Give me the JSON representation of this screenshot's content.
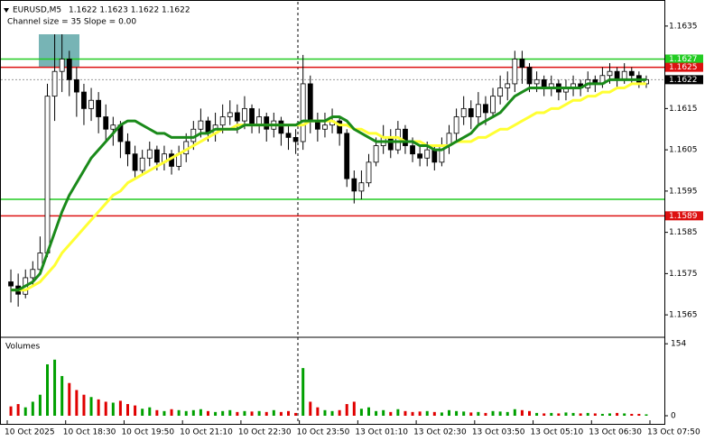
{
  "chart_data": {
    "type": "candlestick",
    "symbol": "EURUSD,M5",
    "quote": "1.1622 1.1623 1.1622 1.1622",
    "indicator": "Channel size = 35 Slope = 0.00",
    "xlim": [
      0,
      88
    ],
    "xticks": [
      {
        "value": 0,
        "label": "10 Oct 2025"
      },
      {
        "value": 8,
        "label": "10 Oct 18:30"
      },
      {
        "value": 16,
        "label": "10 Oct 19:50"
      },
      {
        "value": 24,
        "label": "10 Oct 21:10"
      },
      {
        "value": 32,
        "label": "10 Oct 22:30"
      },
      {
        "value": 40,
        "label": "10 Oct 23:50"
      },
      {
        "value": 48,
        "label": "13 Oct 01:10"
      },
      {
        "value": 56,
        "label": "13 Oct 02:30"
      },
      {
        "value": 64,
        "label": "13 Oct 03:50"
      },
      {
        "value": 72,
        "label": "13 Oct 05:10"
      },
      {
        "value": 80,
        "label": "13 Oct 06:30"
      },
      {
        "value": 88,
        "label": "13 Oct 07:50"
      }
    ],
    "ylim": [
      1.156,
      1.164
    ],
    "yticks": [
      1.1565,
      1.1575,
      1.1585,
      1.1595,
      1.1605,
      1.1615,
      1.1625,
      1.1635
    ],
    "up_color": "#ffffff",
    "down_color": "#000000",
    "open": [
      1.1573,
      1.1572,
      1.157,
      1.1574,
      1.1576,
      1.158,
      1.1618,
      1.1624,
      1.1627,
      1.1622,
      1.1619,
      1.1615,
      1.1617,
      1.1613,
      1.161,
      1.1611,
      1.1607,
      1.1604,
      1.16,
      1.1603,
      1.1605,
      1.1602,
      1.1604,
      1.1601,
      1.1604,
      1.1607,
      1.161,
      1.1612,
      1.1609,
      1.1611,
      1.1613,
      1.1614,
      1.1612,
      1.1615,
      1.1611,
      1.1613,
      1.161,
      1.1612,
      1.1609,
      1.1608,
      1.1607,
      1.1621,
      1.1612,
      1.161,
      1.1611,
      1.1612,
      1.1609,
      1.1598,
      1.1595,
      1.1597,
      1.1602,
      1.1606,
      1.1608,
      1.1605,
      1.161,
      1.1606,
      1.1604,
      1.1603,
      1.1605,
      1.1602,
      1.1606,
      1.1609,
      1.1613,
      1.1615,
      1.1613,
      1.1616,
      1.1614,
      1.1618,
      1.162,
      1.1621,
      1.1627,
      1.1625,
      1.1621,
      1.1622,
      1.162,
      1.1621,
      1.1619,
      1.162,
      1.1621,
      1.162,
      1.1622,
      1.1621,
      1.1623,
      1.1624,
      1.1622,
      1.1624,
      1.1623,
      1.1621
    ],
    "high": [
      1.1576,
      1.1575,
      1.1576,
      1.1578,
      1.1584,
      1.1621,
      1.1633,
      1.1633,
      1.1629,
      1.1625,
      1.1621,
      1.162,
      1.1619,
      1.1616,
      1.1613,
      1.1612,
      1.1609,
      1.1606,
      1.1605,
      1.1607,
      1.1606,
      1.1606,
      1.1605,
      1.1606,
      1.1609,
      1.1612,
      1.1615,
      1.1613,
      1.1614,
      1.1616,
      1.1617,
      1.1616,
      1.1618,
      1.1616,
      1.1615,
      1.1614,
      1.1614,
      1.1613,
      1.1611,
      1.161,
      1.1628,
      1.1623,
      1.1614,
      1.1614,
      1.1615,
      1.1613,
      1.161,
      1.16,
      1.16,
      1.1604,
      1.1608,
      1.1611,
      1.161,
      1.1612,
      1.1611,
      1.1608,
      1.1606,
      1.1607,
      1.1606,
      1.1608,
      1.1611,
      1.1615,
      1.1618,
      1.1617,
      1.1619,
      1.1618,
      1.162,
      1.1623,
      1.1624,
      1.1629,
      1.1629,
      1.1626,
      1.1624,
      1.1623,
      1.1623,
      1.1622,
      1.1622,
      1.1623,
      1.1622,
      1.1624,
      1.1623,
      1.1625,
      1.1626,
      1.1625,
      1.1626,
      1.1625,
      1.1624,
      1.1623
    ],
    "low": [
      1.1568,
      1.1567,
      1.1569,
      1.1572,
      1.1575,
      1.1579,
      1.1612,
      1.1619,
      1.1618,
      1.1613,
      1.1611,
      1.1612,
      1.1609,
      1.1607,
      1.1606,
      1.1603,
      1.1601,
      1.1598,
      1.1599,
      1.1601,
      1.16,
      1.16,
      1.1599,
      1.16,
      1.1602,
      1.1605,
      1.1608,
      1.1607,
      1.1607,
      1.1609,
      1.1611,
      1.1609,
      1.161,
      1.1609,
      1.1609,
      1.1607,
      1.1608,
      1.1606,
      1.1605,
      1.1604,
      1.1605,
      1.1609,
      1.1607,
      1.1608,
      1.1609,
      1.1606,
      1.1596,
      1.1592,
      1.1593,
      1.1596,
      1.1601,
      1.1604,
      1.1603,
      1.1604,
      1.1604,
      1.1602,
      1.1601,
      1.1601,
      1.16,
      1.1601,
      1.1604,
      1.1607,
      1.1611,
      1.161,
      1.1611,
      1.1611,
      1.1613,
      1.1616,
      1.1617,
      1.1619,
      1.1621,
      1.1619,
      1.1619,
      1.1618,
      1.1618,
      1.1617,
      1.1617,
      1.1618,
      1.1618,
      1.1619,
      1.1619,
      1.162,
      1.1621,
      1.162,
      1.1621,
      1.1621,
      1.162,
      1.162
    ],
    "close": [
      1.1572,
      1.157,
      1.1574,
      1.1576,
      1.158,
      1.1618,
      1.1624,
      1.1627,
      1.1622,
      1.1619,
      1.1615,
      1.1617,
      1.1613,
      1.161,
      1.1611,
      1.1607,
      1.1604,
      1.16,
      1.1603,
      1.1605,
      1.1602,
      1.1604,
      1.1601,
      1.1604,
      1.1607,
      1.161,
      1.1612,
      1.1609,
      1.1611,
      1.1613,
      1.1614,
      1.1612,
      1.1615,
      1.1611,
      1.1613,
      1.161,
      1.1612,
      1.1609,
      1.1608,
      1.1607,
      1.1621,
      1.1612,
      1.161,
      1.1611,
      1.1612,
      1.1609,
      1.1598,
      1.1595,
      1.1597,
      1.1602,
      1.1606,
      1.1608,
      1.1605,
      1.161,
      1.1606,
      1.1604,
      1.1603,
      1.1605,
      1.1602,
      1.1606,
      1.1609,
      1.1613,
      1.1615,
      1.1613,
      1.1616,
      1.1614,
      1.1618,
      1.162,
      1.1621,
      1.1627,
      1.1625,
      1.1621,
      1.1622,
      1.162,
      1.1621,
      1.1619,
      1.162,
      1.1621,
      1.162,
      1.1622,
      1.1621,
      1.1623,
      1.1624,
      1.1622,
      1.1624,
      1.1623,
      1.1621,
      1.1622
    ],
    "lines": [
      {
        "color": "#ffff33",
        "values": [
          1.1571,
          1.1571,
          1.1571,
          1.1572,
          1.1573,
          1.1575,
          1.1577,
          1.158,
          1.1582,
          1.1584,
          1.1586,
          1.1588,
          1.159,
          1.1592,
          1.1594,
          1.1595,
          1.1597,
          1.1598,
          1.1599,
          1.16,
          1.1601,
          1.1602,
          1.1603,
          1.1604,
          1.1605,
          1.1606,
          1.1607,
          1.1608,
          1.1609,
          1.161,
          1.161,
          1.1611,
          1.1611,
          1.1611,
          1.1611,
          1.1611,
          1.1611,
          1.1611,
          1.1611,
          1.1611,
          1.1611,
          1.1612,
          1.1612,
          1.1612,
          1.1612,
          1.1611,
          1.1611,
          1.161,
          1.161,
          1.1609,
          1.1609,
          1.1608,
          1.1608,
          1.1608,
          1.1607,
          1.1607,
          1.1607,
          1.1606,
          1.1606,
          1.1606,
          1.1606,
          1.1607,
          1.1607,
          1.1607,
          1.1608,
          1.1608,
          1.1609,
          1.161,
          1.161,
          1.1611,
          1.1612,
          1.1613,
          1.1614,
          1.1614,
          1.1615,
          1.1615,
          1.1616,
          1.1617,
          1.1617,
          1.1618,
          1.1618,
          1.1619,
          1.1619,
          1.162,
          1.162,
          1.1621,
          1.1621,
          1.1621
        ]
      },
      {
        "color": "#1a8a1a",
        "values": [
          1.1571,
          1.1571,
          1.1572,
          1.1573,
          1.1575,
          1.158,
          1.1585,
          1.159,
          1.1594,
          1.1597,
          1.16,
          1.1603,
          1.1605,
          1.1607,
          1.1609,
          1.1611,
          1.1612,
          1.1612,
          1.1611,
          1.161,
          1.1609,
          1.1609,
          1.1608,
          1.1608,
          1.1608,
          1.1608,
          1.1609,
          1.1609,
          1.161,
          1.161,
          1.161,
          1.161,
          1.1611,
          1.1611,
          1.1611,
          1.1611,
          1.1611,
          1.1611,
          1.1611,
          1.1611,
          1.1612,
          1.1612,
          1.1612,
          1.1612,
          1.1613,
          1.1613,
          1.1612,
          1.161,
          1.1609,
          1.1608,
          1.1607,
          1.1607,
          1.1607,
          1.1607,
          1.1607,
          1.1607,
          1.1606,
          1.1606,
          1.1605,
          1.1605,
          1.1606,
          1.1607,
          1.1608,
          1.1609,
          1.1611,
          1.1612,
          1.1613,
          1.1614,
          1.1616,
          1.1618,
          1.1619,
          1.162,
          1.162,
          1.162,
          1.162,
          1.162,
          1.162,
          1.162,
          1.162,
          1.1621,
          1.1621,
          1.1621,
          1.1622,
          1.1622,
          1.1622,
          1.1622,
          1.1622,
          1.1622
        ]
      }
    ],
    "levels": [
      {
        "value": 1.1627,
        "color": "#22cc22",
        "label_box": true
      },
      {
        "value": 1.1625,
        "color": "#dd1111",
        "label_box": true
      },
      {
        "value": 1.1593,
        "color": "#22cc22",
        "label_box": false
      },
      {
        "value": 1.1589,
        "color": "#dd1111",
        "label_box": true
      }
    ],
    "last_price": 1.1622,
    "volume": {
      "label": "Volumes",
      "ylim": [
        0,
        164
      ],
      "yticks": [
        0,
        154
      ],
      "up_color": "#00a000",
      "down_color": "#e00000",
      "values": [
        20,
        25,
        18,
        30,
        45,
        110,
        120,
        85,
        70,
        55,
        45,
        40,
        35,
        30,
        28,
        32,
        25,
        22,
        15,
        18,
        12,
        10,
        14,
        12,
        10,
        12,
        14,
        10,
        8,
        10,
        12,
        8,
        10,
        9,
        10,
        8,
        12,
        8,
        10,
        6,
        102,
        30,
        18,
        12,
        10,
        12,
        25,
        30,
        15,
        18,
        10,
        12,
        8,
        14,
        10,
        8,
        9,
        10,
        8,
        7,
        12,
        10,
        9,
        7,
        8,
        6,
        10,
        9,
        8,
        14,
        12,
        10,
        6,
        5,
        6,
        5,
        7,
        6,
        5,
        6,
        5,
        4,
        5,
        6,
        5,
        4,
        4,
        3
      ]
    }
  }
}
